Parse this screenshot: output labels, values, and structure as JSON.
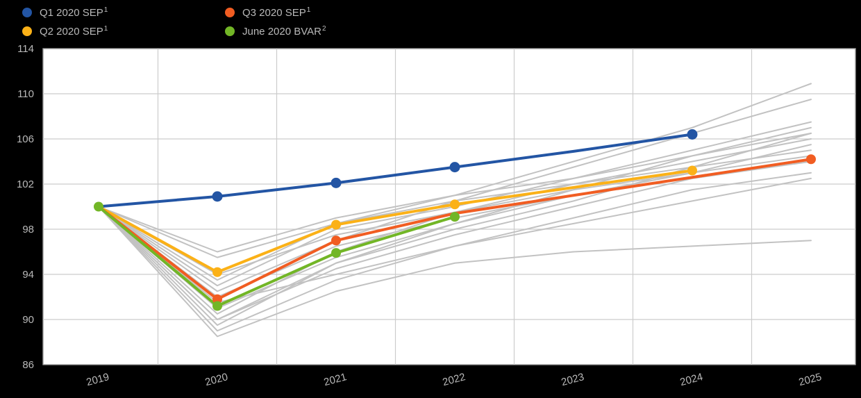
{
  "page": {
    "background": "#000000"
  },
  "chart_data": {
    "type": "line",
    "title": "",
    "xlabel": "",
    "ylabel": "",
    "categories": [
      "2019",
      "2020",
      "2021",
      "2022",
      "2023",
      "2024",
      "2025"
    ],
    "ylim": [
      86,
      114
    ],
    "y_ticks": [
      86,
      90,
      94,
      98,
      102,
      106,
      110,
      114
    ],
    "grid": true,
    "legend_position": "top-left",
    "colors": {
      "plot_bg": "#ffffff",
      "grid": "#cccccc",
      "border": "#9e9e9e",
      "tick_text": "#b9b9b9",
      "gray_series": "#c2c2c2"
    },
    "legend": [
      {
        "label": "Q1 2020 SEP",
        "sup": "1",
        "color": "#2355a4"
      },
      {
        "label": "Q2 2020 SEP",
        "sup": "1",
        "color": "#fbb117"
      },
      {
        "label": "Q3 2020 SEP",
        "sup": "1",
        "color": "#f15d22"
      },
      {
        "label": "June 2020 BVAR",
        "sup": "2",
        "color": "#72b626"
      }
    ],
    "series": [
      {
        "name": "individual-forecast-1",
        "color": "#c2c2c2",
        "width": 2,
        "values": [
          100,
          95.5,
          98.5,
          100.5,
          102,
          103.5,
          105
        ]
      },
      {
        "name": "individual-forecast-2",
        "color": "#c2c2c2",
        "width": 2,
        "values": [
          100,
          94,
          97.5,
          99.5,
          101.5,
          103,
          104.5
        ]
      },
      {
        "name": "individual-forecast-3",
        "color": "#c2c2c2",
        "width": 2,
        "values": [
          100,
          93,
          98,
          100,
          102.5,
          105,
          107.5
        ]
      },
      {
        "name": "individual-forecast-4",
        "color": "#c2c2c2",
        "width": 2,
        "values": [
          100,
          92,
          96.5,
          99,
          101,
          103,
          105.5
        ]
      },
      {
        "name": "individual-forecast-5",
        "color": "#c2c2c2",
        "width": 2,
        "values": [
          100,
          91,
          95.5,
          98.5,
          101.5,
          104.5,
          107
        ]
      },
      {
        "name": "individual-forecast-6",
        "color": "#c2c2c2",
        "width": 2,
        "values": [
          100,
          90.5,
          96,
          99.5,
          102,
          104,
          106
        ]
      },
      {
        "name": "individual-forecast-7",
        "color": "#c2c2c2",
        "width": 2,
        "values": [
          100,
          90,
          94.5,
          97.5,
          100,
          102.5,
          104
        ]
      },
      {
        "name": "individual-forecast-8",
        "color": "#c2c2c2",
        "width": 2,
        "values": [
          100,
          89.5,
          95,
          98,
          100.5,
          103.5,
          106.5
        ]
      },
      {
        "name": "individual-forecast-9",
        "color": "#c2c2c2",
        "width": 2,
        "values": [
          100,
          89,
          93.5,
          96.5,
          99,
          101.5,
          103
        ]
      },
      {
        "name": "individual-forecast-10",
        "color": "#c2c2c2",
        "width": 2,
        "values": [
          100,
          88.5,
          92.5,
          95,
          96,
          96.5,
          97
        ]
      },
      {
        "name": "individual-forecast-11",
        "color": "#c2c2c2",
        "width": 2,
        "values": [
          100,
          92.5,
          97,
          100.5,
          103.5,
          106.5,
          109.5
        ]
      },
      {
        "name": "individual-forecast-12",
        "color": "#c2c2c2",
        "width": 2,
        "values": [
          100,
          93.5,
          98.5,
          101,
          104,
          107,
          110.9
        ]
      },
      {
        "name": "individual-forecast-13",
        "color": "#c2c2c2",
        "width": 2,
        "values": [
          100,
          96,
          99,
          101,
          102.5,
          104.5,
          106.5
        ]
      },
      {
        "name": "individual-forecast-14",
        "color": "#c2c2c2",
        "width": 2,
        "values": [
          100,
          91.5,
          94,
          96.5,
          98.5,
          100.5,
          102.5
        ]
      },
      {
        "name": "individual-forecast-15",
        "color": "#c2c2c2",
        "width": 2,
        "values": [
          100,
          90,
          95,
          98.5,
          101,
          103,
          null
        ]
      },
      {
        "name": "Q1 2020 SEP",
        "color": "#2355a4",
        "width": 4,
        "marker_r": 7.5,
        "values": [
          100,
          100.9,
          102.1,
          103.5,
          104.9,
          106.4,
          null
        ],
        "markers": [
          false,
          true,
          true,
          true,
          false,
          true,
          false
        ]
      },
      {
        "name": "Q2 2020 SEP",
        "color": "#fbb117",
        "width": 4,
        "marker_r": 7,
        "values": [
          100,
          94.2,
          98.4,
          100.2,
          101.7,
          103.2,
          null
        ],
        "markers": [
          false,
          true,
          true,
          true,
          false,
          true,
          false
        ]
      },
      {
        "name": "Q3 2020 SEP",
        "color": "#f15d22",
        "width": 4,
        "marker_r": 7,
        "values": [
          100,
          91.8,
          97,
          99.4,
          101,
          102.6,
          104.2
        ],
        "markers": [
          false,
          true,
          true,
          false,
          false,
          false,
          true
        ]
      },
      {
        "name": "June 2020 BVAR",
        "color": "#72b626",
        "width": 4,
        "marker_r": 7,
        "values": [
          100,
          91.2,
          95.9,
          99.1,
          null,
          null,
          null
        ],
        "markers": [
          true,
          true,
          true,
          true,
          false,
          false,
          false
        ]
      }
    ]
  }
}
